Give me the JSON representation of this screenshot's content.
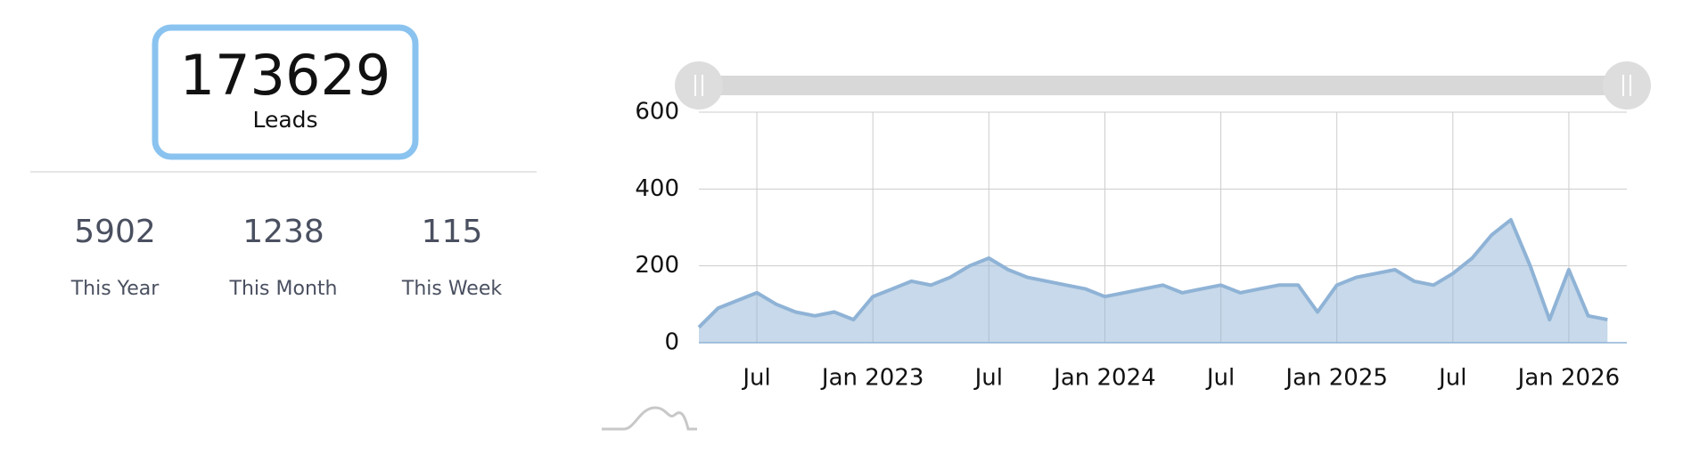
{
  "summary": {
    "total": {
      "value": 173629,
      "label": "Leads"
    },
    "stats": [
      {
        "value": 5902,
        "label": "This Year"
      },
      {
        "value": 1238,
        "label": "This Month"
      },
      {
        "value": 115,
        "label": "This Week"
      }
    ]
  },
  "chart_data": {
    "type": "area",
    "x": [
      "2022-04",
      "2022-05",
      "2022-06",
      "2022-07",
      "2022-08",
      "2022-09",
      "2022-10",
      "2022-11",
      "2022-12",
      "2023-01",
      "2023-02",
      "2023-03",
      "2023-04",
      "2023-05",
      "2023-06",
      "2023-07",
      "2023-08",
      "2023-09",
      "2023-10",
      "2023-11",
      "2023-12",
      "2024-01",
      "2024-02",
      "2024-03",
      "2024-04",
      "2024-05",
      "2024-06",
      "2024-07",
      "2024-08",
      "2024-09",
      "2024-10",
      "2024-11",
      "2024-12",
      "2025-01",
      "2025-02",
      "2025-03",
      "2025-04",
      "2025-05",
      "2025-06",
      "2025-07",
      "2025-08",
      "2025-09",
      "2025-10",
      "2025-11",
      "2025-12",
      "2026-01",
      "2026-02",
      "2026-03"
    ],
    "values": [
      40,
      90,
      110,
      130,
      100,
      80,
      70,
      80,
      60,
      120,
      140,
      160,
      150,
      170,
      200,
      220,
      190,
      170,
      160,
      150,
      140,
      120,
      130,
      140,
      150,
      130,
      140,
      150,
      130,
      140,
      150,
      150,
      80,
      150,
      170,
      180,
      190,
      160,
      150,
      180,
      220,
      280,
      320,
      200,
      60,
      190,
      70,
      60
    ],
    "color": "#8fb3d6",
    "xlim": [
      "2022-04",
      "2026-04"
    ],
    "xticks": [
      {
        "value": "2022-07",
        "label": "Jul"
      },
      {
        "value": "2023-01",
        "label": "Jan 2023"
      },
      {
        "value": "2023-07",
        "label": "Jul"
      },
      {
        "value": "2024-01",
        "label": "Jan 2024"
      },
      {
        "value": "2024-07",
        "label": "Jul"
      },
      {
        "value": "2025-01",
        "label": "Jan 2025"
      },
      {
        "value": "2025-07",
        "label": "Jul"
      },
      {
        "value": "2026-01",
        "label": "Jan 2026"
      }
    ],
    "ylim": [
      0,
      600
    ],
    "yticks": [
      0,
      200,
      400,
      600
    ],
    "grid": true
  }
}
